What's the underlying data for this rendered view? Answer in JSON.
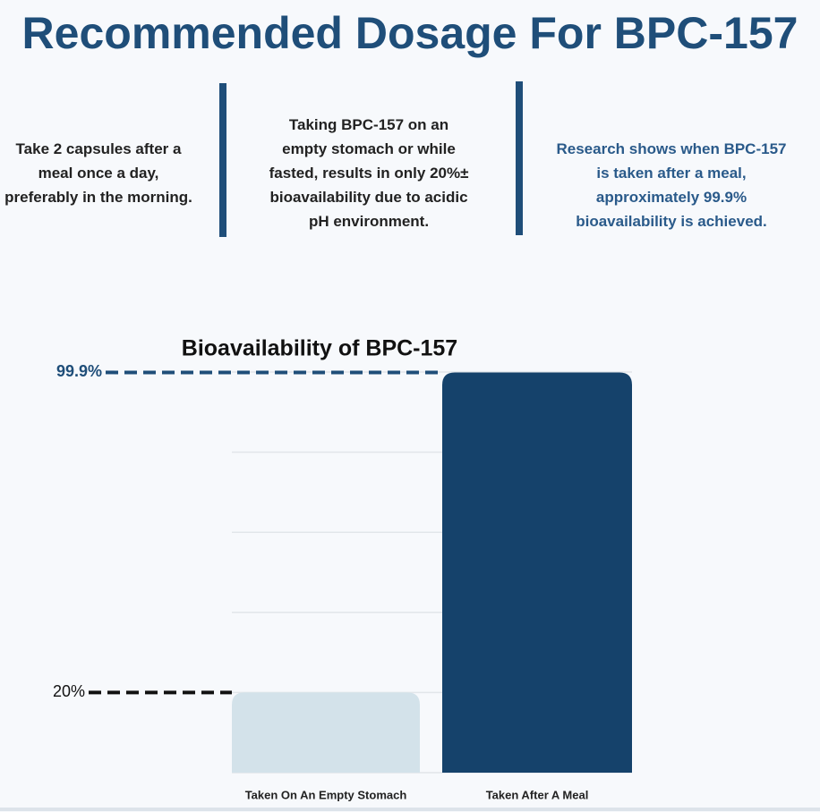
{
  "header": {
    "title": "Recommended Dosage For BPC-157"
  },
  "notes": [
    {
      "lines": [
        "Take 2 capsules after a",
        "meal once a day,",
        "preferably in the morning."
      ]
    },
    {
      "lines": [
        "Taking BPC-157 on an",
        "empty stomach or while",
        "fasted, results in only 20%±",
        "bioavailability due to acidic",
        "pH environment."
      ]
    },
    {
      "lines": [
        "Research shows when BPC-157",
        "is taken after a meal,",
        "approximately 99.9%",
        "bioavailability is achieved."
      ]
    }
  ],
  "chart_data": {
    "type": "bar",
    "title": "Bioavailability of BPC-157",
    "categories": [
      "Taken On An Empty Stomach",
      "Taken After A Meal"
    ],
    "values": [
      20,
      99.9
    ],
    "value_labels": [
      "20%",
      "99.9%"
    ],
    "colors": [
      "#d3e2ea",
      "#15426b"
    ],
    "label_colors": [
      "#111111",
      "#1f4e79"
    ],
    "ylim": [
      0,
      100
    ],
    "yticks": [
      0,
      20,
      40,
      60,
      80,
      100
    ],
    "grid": true
  }
}
